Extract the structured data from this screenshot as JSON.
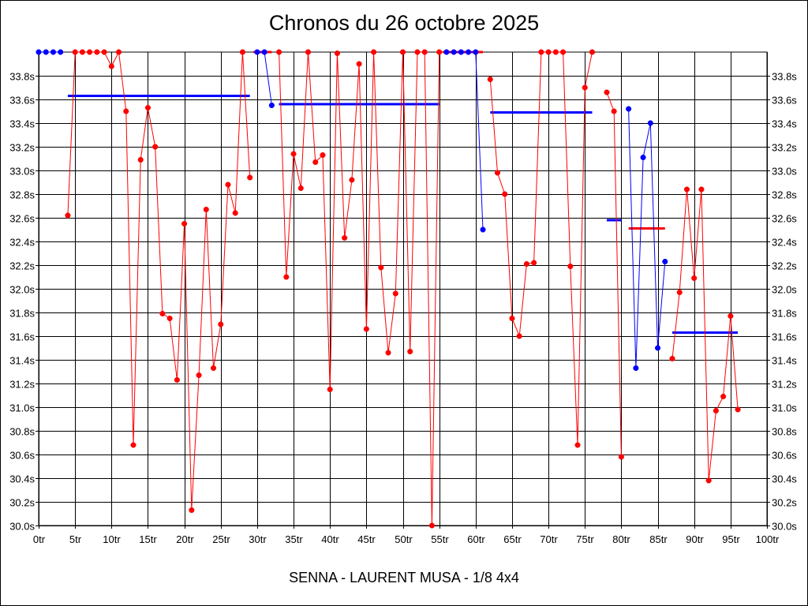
{
  "chart_data": {
    "type": "line",
    "title": "Chronos du 26 octobre 2025",
    "subtitle": "SENNA - LAURENT MUSA - 1/8 4x4",
    "xlim": [
      0,
      100
    ],
    "ylim": [
      30.0,
      34.0
    ],
    "x_ticks": [
      0,
      5,
      10,
      15,
      20,
      25,
      30,
      35,
      40,
      45,
      50,
      55,
      60,
      65,
      70,
      75,
      80,
      85,
      90,
      95,
      100
    ],
    "x_tick_labels": [
      "0tr",
      "5tr",
      "10tr",
      "15tr",
      "20tr",
      "25tr",
      "30tr",
      "35tr",
      "40tr",
      "45tr",
      "50tr",
      "55tr",
      "60tr",
      "65tr",
      "70tr",
      "75tr",
      "80tr",
      "85tr",
      "90tr",
      "95tr",
      "100tr"
    ],
    "y_ticks": [
      30.0,
      30.2,
      30.4,
      30.6,
      30.8,
      31.0,
      31.2,
      31.4,
      31.6,
      31.8,
      32.0,
      32.2,
      32.4,
      32.6,
      32.8,
      33.0,
      33.2,
      33.4,
      33.6,
      33.8
    ],
    "y_tick_labels": [
      "30.0s",
      "30.2s",
      "30.4s",
      "30.6s",
      "30.8s",
      "31.0s",
      "31.2s",
      "31.4s",
      "31.6s",
      "31.8s",
      "32.0s",
      "32.2s",
      "32.4s",
      "32.6s",
      "32.8s",
      "33.0s",
      "33.2s",
      "33.4s",
      "33.6s",
      "33.8s"
    ],
    "grid": true,
    "colors": {
      "red": "#ff0000",
      "blue": "#0000ff",
      "marker_red": "#ff0000",
      "marker_blue": "#0000ff"
    },
    "series": [
      {
        "color": "blue",
        "x": [
          0,
          1,
          2,
          3
        ],
        "y": [
          34.0,
          34.0,
          34.0,
          34.0
        ]
      },
      {
        "color": "red",
        "x": [
          4,
          5,
          6,
          7,
          8,
          9,
          10,
          11,
          12,
          13,
          14,
          15,
          16,
          17,
          18,
          19,
          20,
          21,
          22,
          23,
          24,
          25,
          26,
          27,
          28,
          29
        ],
        "y": [
          32.62,
          34.0,
          34.0,
          34.0,
          34.0,
          34.0,
          33.88,
          34.0,
          33.5,
          30.68,
          33.09,
          33.53,
          33.2,
          31.79,
          31.75,
          31.23,
          32.55,
          30.13,
          31.27,
          32.67,
          31.33,
          31.7,
          32.88,
          32.64,
          34.0,
          32.94
        ]
      },
      {
        "color": "blue",
        "x": [
          30,
          31,
          32
        ],
        "y": [
          34.0,
          34.0,
          33.55
        ]
      },
      {
        "color": "red",
        "x": [
          33,
          34,
          35,
          36,
          37,
          38,
          39,
          40,
          41,
          42,
          43,
          44,
          45,
          46,
          47,
          48,
          49,
          50,
          51,
          52,
          53,
          54,
          55
        ],
        "y": [
          34.0,
          32.1,
          33.14,
          32.85,
          34.0,
          33.07,
          33.13,
          31.15,
          33.99,
          32.43,
          32.92,
          33.9,
          31.66,
          34.0,
          32.18,
          31.46,
          31.96,
          34.0,
          31.47,
          34.0,
          34.0,
          30.0,
          34.0
        ]
      },
      {
        "color": "blue",
        "x": [
          56,
          57,
          58,
          59,
          60,
          61
        ],
        "y": [
          34.0,
          34.0,
          34.0,
          34.0,
          34.0,
          32.5
        ]
      },
      {
        "color": "red",
        "x": [
          62,
          63,
          64,
          65,
          66,
          67,
          68,
          69,
          70,
          71,
          72,
          73,
          74,
          75,
          76
        ],
        "y": [
          33.77,
          32.98,
          32.8,
          31.75,
          31.6,
          32.21,
          32.22,
          34.0,
          34.0,
          34.0,
          34.0,
          32.19,
          30.68,
          33.7,
          34.0
        ]
      },
      {
        "color": "red",
        "x": [
          78,
          79,
          80
        ],
        "y": [
          33.66,
          33.5,
          30.58
        ]
      },
      {
        "color": "blue",
        "x": [
          81,
          82,
          83,
          84,
          85,
          86
        ],
        "y": [
          33.52,
          31.33,
          33.11,
          33.4,
          31.5,
          32.23
        ]
      },
      {
        "color": "red",
        "x": [
          87,
          88,
          89,
          90,
          91,
          92,
          93,
          94,
          95,
          96
        ],
        "y": [
          31.41,
          31.97,
          32.84,
          32.09,
          32.84,
          30.38,
          30.97,
          31.09,
          31.77,
          30.98
        ]
      }
    ],
    "averages": [
      {
        "color": "blue",
        "x_start": 4,
        "x_end": 29,
        "y": 33.63
      },
      {
        "color": "red",
        "x_start": 29.5,
        "x_end": 32,
        "y": 34.0
      },
      {
        "color": "blue",
        "x_start": 33,
        "x_end": 55,
        "y": 33.56
      },
      {
        "color": "red",
        "x_start": 55.5,
        "x_end": 61,
        "y": 34.0
      },
      {
        "color": "blue",
        "x_start": 62,
        "x_end": 76,
        "y": 33.49
      },
      {
        "color": "blue",
        "x_start": 78,
        "x_end": 80,
        "y": 32.58
      },
      {
        "color": "red",
        "x_start": 81,
        "x_end": 86,
        "y": 32.51
      },
      {
        "color": "blue",
        "x_start": 87,
        "x_end": 96,
        "y": 31.63
      }
    ]
  }
}
